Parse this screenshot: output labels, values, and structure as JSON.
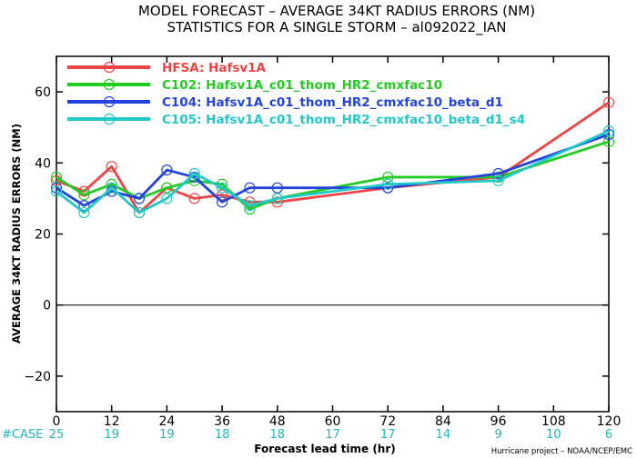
{
  "chart_data": {
    "type": "line",
    "title": "MODEL FORECAST – AVERAGE 34KT RADIUS ERRORS (NM)",
    "subtitle": "STATISTICS FOR A SINGLE STORM – al092022_IAN",
    "xlabel": "Forecast lead time (hr)",
    "ylabel": "AVERAGE 34KT RADIUS ERRORS (NM)",
    "xlim": [
      0,
      120
    ],
    "ylim": [
      -30,
      70
    ],
    "x_ticks": [
      0,
      12,
      24,
      36,
      48,
      60,
      72,
      84,
      96,
      108,
      120
    ],
    "y_ticks": [
      -20,
      0,
      20,
      40,
      60
    ],
    "grid": false,
    "legend_position": "top-left",
    "case_label": "#CASE",
    "case_counts": [
      25,
      19,
      19,
      18,
      18,
      17,
      17,
      14,
      9,
      10,
      6
    ],
    "credit": "Hurricane project – NOAA/NCEP/EMC",
    "series": [
      {
        "name": "HFSA: Hafsv1A",
        "color": "#ee4444",
        "x": [
          0,
          6,
          12,
          18,
          24,
          30,
          36,
          42,
          48,
          72,
          96,
          120
        ],
        "y": [
          35,
          32,
          39,
          26,
          33,
          30,
          31,
          29,
          29,
          33,
          36,
          57
        ]
      },
      {
        "name": "C102: Hafsv1A_c01_thom_HR2_cmxfac10",
        "color": "#22cc22",
        "x": [
          0,
          6,
          12,
          18,
          24,
          30,
          36,
          42,
          48,
          72,
          96,
          120
        ],
        "y": [
          36,
          31,
          34,
          30,
          33,
          35,
          34,
          27,
          30,
          36,
          36,
          46
        ]
      },
      {
        "name": "C104: Hafsv1A_c01_thom_HR2_cmxfac10_beta_d1",
        "color": "#2244dd",
        "x": [
          0,
          6,
          12,
          18,
          24,
          30,
          36,
          42,
          48,
          72,
          96,
          120
        ],
        "y": [
          33,
          28,
          32,
          30,
          38,
          36,
          29,
          33,
          33,
          33,
          37,
          48
        ]
      },
      {
        "name": "C105: Hafsv1A_c01_thom_HR2_cmxfac10_beta_d1_s4",
        "color": "#22c8c8",
        "x": [
          0,
          6,
          12,
          18,
          24,
          30,
          36,
          42,
          48,
          72,
          96,
          120
        ],
        "y": [
          32,
          26,
          33,
          26,
          30,
          37,
          33,
          28,
          30,
          34,
          35,
          49
        ]
      }
    ]
  }
}
